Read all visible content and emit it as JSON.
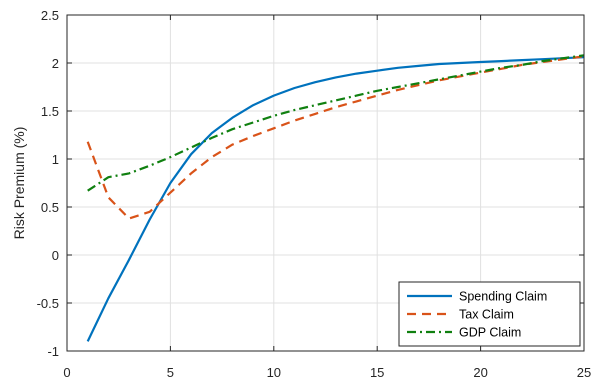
{
  "chart_data": {
    "type": "line",
    "title": "",
    "xlabel": "",
    "ylabel": "Risk Premium (%)",
    "xlim": [
      0,
      25
    ],
    "ylim": [
      -1,
      2.5
    ],
    "xticks": [
      0,
      5,
      10,
      15,
      20,
      25
    ],
    "yticks": [
      -1,
      -0.5,
      0,
      0.5,
      1,
      1.5,
      2,
      2.5
    ],
    "xtick_labels": [
      "0",
      "5",
      "10",
      "15",
      "20",
      "25"
    ],
    "ytick_labels": [
      "-1",
      "-0.5",
      "0",
      "0.5",
      "1",
      "1.5",
      "2",
      "2.5"
    ],
    "grid": true,
    "legend_position": "bottom-right",
    "x": [
      1,
      2,
      3,
      4,
      5,
      6,
      7,
      8,
      9,
      10,
      11,
      12,
      13,
      14,
      15,
      16,
      17,
      18,
      19,
      20,
      21,
      22,
      23,
      24,
      25
    ],
    "series": [
      {
        "name": "Spending Claim",
        "color": "#0072BD",
        "style": "solid",
        "values": [
          -0.9,
          -0.45,
          -0.05,
          0.37,
          0.75,
          1.05,
          1.27,
          1.43,
          1.56,
          1.66,
          1.74,
          1.8,
          1.85,
          1.89,
          1.92,
          1.95,
          1.97,
          1.99,
          2.0,
          2.01,
          2.02,
          2.03,
          2.04,
          2.05,
          2.06
        ]
      },
      {
        "name": "Tax Claim",
        "color": "#D95319",
        "style": "dashed",
        "values": [
          1.18,
          0.6,
          0.38,
          0.45,
          0.65,
          0.85,
          1.02,
          1.15,
          1.24,
          1.32,
          1.4,
          1.47,
          1.54,
          1.6,
          1.66,
          1.72,
          1.77,
          1.82,
          1.86,
          1.9,
          1.94,
          1.98,
          2.01,
          2.04,
          2.07
        ]
      },
      {
        "name": "GDP Claim",
        "color": "#108010",
        "style": "dashdot",
        "values": [
          0.67,
          0.81,
          0.85,
          0.93,
          1.02,
          1.12,
          1.22,
          1.31,
          1.38,
          1.45,
          1.51,
          1.56,
          1.61,
          1.66,
          1.71,
          1.75,
          1.79,
          1.83,
          1.87,
          1.91,
          1.95,
          1.98,
          2.02,
          2.05,
          2.08
        ]
      }
    ]
  }
}
